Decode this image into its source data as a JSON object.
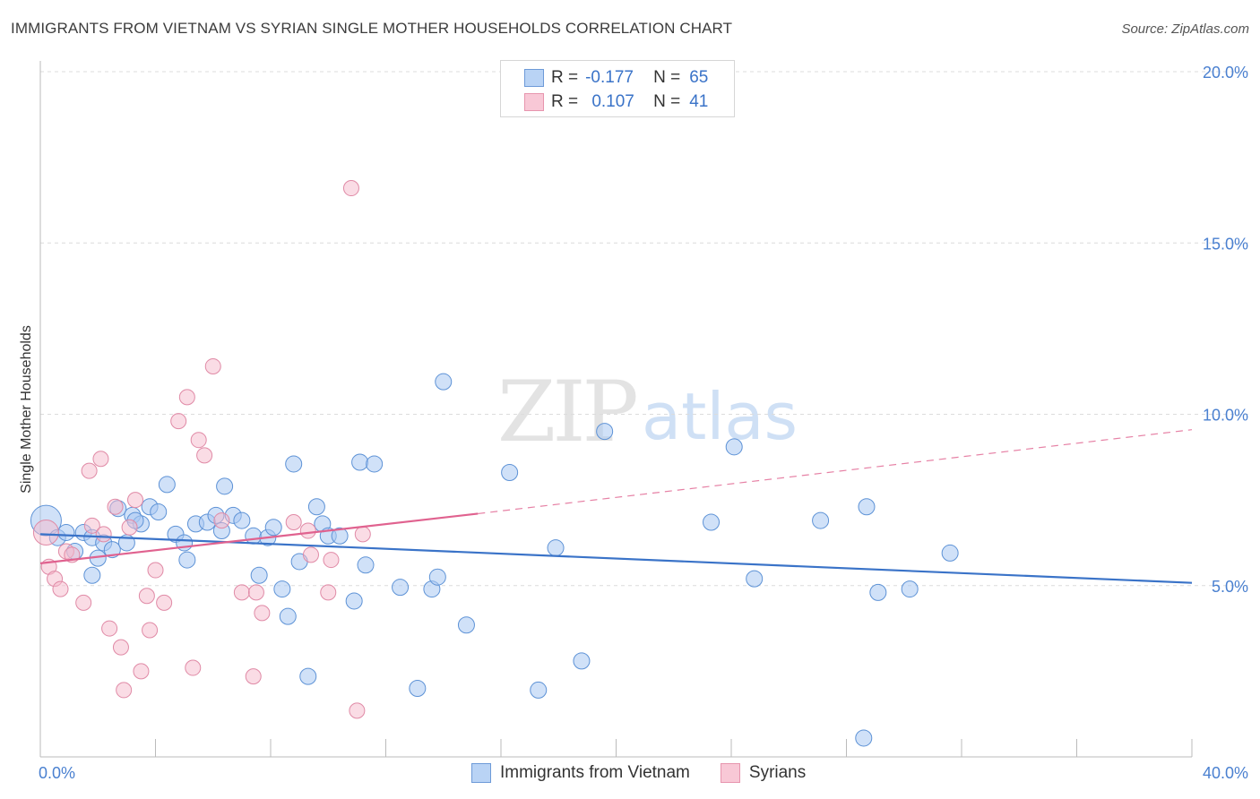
{
  "title": "IMMIGRANTS FROM VIETNAM VS SYRIAN SINGLE MOTHER HOUSEHOLDS CORRELATION CHART",
  "source": "Source: ZipAtlas.com",
  "watermark": {
    "zip": "ZIP",
    "atlas": "atlas"
  },
  "legend_top": [
    {
      "r_label": "R =",
      "r_value": "-0.177",
      "n_label": "N =",
      "n_value": "65"
    },
    {
      "r_label": "R =",
      "r_value": "0.107",
      "n_label": "N =",
      "n_value": "41"
    }
  ],
  "legend_bottom": [
    "Immigrants from Vietnam",
    "Syrians"
  ],
  "colors": {
    "vietnam_fill": "#a9c8f2",
    "vietnam_stroke": "#5d92d6",
    "vietnam_line": "#3a73c8",
    "syrian_fill": "#f6b9cb",
    "syrian_stroke": "#e08aa6",
    "syrian_line": "#e0628f",
    "tick_text": "#4a80d0",
    "grid": "#dcdcdc"
  },
  "chart_data": {
    "type": "scatter",
    "title": "IMMIGRANTS FROM VIETNAM VS SYRIAN SINGLE MOTHER HOUSEHOLDS CORRELATION CHART",
    "xlabel": "",
    "ylabel": "Single Mother Households",
    "xlim": [
      0,
      40
    ],
    "ylim": [
      0,
      20
    ],
    "x_tick_labels": [
      "0.0%",
      "40.0%"
    ],
    "y_ticks": [
      5,
      10,
      15,
      20
    ],
    "y_tick_labels": [
      "5.0%",
      "10.0%",
      "15.0%",
      "20.0%"
    ],
    "grid": true,
    "legend_position": "top-center",
    "series": [
      {
        "name": "Immigrants from Vietnam",
        "R": -0.177,
        "N": 65,
        "trend": {
          "x": [
            0,
            40
          ],
          "y": [
            6.5,
            5.08
          ]
        },
        "points": [
          [
            0.2,
            6.9
          ],
          [
            0.6,
            6.4
          ],
          [
            0.9,
            6.55
          ],
          [
            1.2,
            6.0
          ],
          [
            1.5,
            6.55
          ],
          [
            1.8,
            6.4
          ],
          [
            1.8,
            5.3
          ],
          [
            2.0,
            5.8
          ],
          [
            2.2,
            6.25
          ],
          [
            2.5,
            6.05
          ],
          [
            2.7,
            7.25
          ],
          [
            3.0,
            6.25
          ],
          [
            3.2,
            7.05
          ],
          [
            3.5,
            6.8
          ],
          [
            3.8,
            7.3
          ],
          [
            4.1,
            7.15
          ],
          [
            4.4,
            7.95
          ],
          [
            4.7,
            6.5
          ],
          [
            5.0,
            6.25
          ],
          [
            5.1,
            5.75
          ],
          [
            5.4,
            6.8
          ],
          [
            5.8,
            6.85
          ],
          [
            6.1,
            7.05
          ],
          [
            6.3,
            6.6
          ],
          [
            6.4,
            7.9
          ],
          [
            6.7,
            7.05
          ],
          [
            7.0,
            6.9
          ],
          [
            7.4,
            6.45
          ],
          [
            7.6,
            5.3
          ],
          [
            7.9,
            6.4
          ],
          [
            8.1,
            6.7
          ],
          [
            8.4,
            4.9
          ],
          [
            8.6,
            4.1
          ],
          [
            8.8,
            8.55
          ],
          [
            9.0,
            5.7
          ],
          [
            9.3,
            2.35
          ],
          [
            9.6,
            7.3
          ],
          [
            9.8,
            6.8
          ],
          [
            10.0,
            6.45
          ],
          [
            10.4,
            6.45
          ],
          [
            10.9,
            4.55
          ],
          [
            11.1,
            8.6
          ],
          [
            11.3,
            5.6
          ],
          [
            11.6,
            8.55
          ],
          [
            12.5,
            4.95
          ],
          [
            13.1,
            2.0
          ],
          [
            13.6,
            4.9
          ],
          [
            13.8,
            5.25
          ],
          [
            14.0,
            10.95
          ],
          [
            14.8,
            3.85
          ],
          [
            16.3,
            8.3
          ],
          [
            17.3,
            1.95
          ],
          [
            17.9,
            6.1
          ],
          [
            18.8,
            2.8
          ],
          [
            19.6,
            9.5
          ],
          [
            23.3,
            6.85
          ],
          [
            24.1,
            9.05
          ],
          [
            24.8,
            5.2
          ],
          [
            27.1,
            6.9
          ],
          [
            28.6,
            0.55
          ],
          [
            28.7,
            7.3
          ],
          [
            29.1,
            4.8
          ],
          [
            30.2,
            4.9
          ],
          [
            31.6,
            5.95
          ],
          [
            3.3,
            6.9
          ]
        ]
      },
      {
        "name": "Syrians",
        "R": 0.107,
        "N": 41,
        "trend": {
          "x": [
            0,
            15.2
          ],
          "y": [
            5.65,
            7.1
          ]
        },
        "trend_dashed": {
          "x": [
            15.2,
            40
          ],
          "y": [
            7.1,
            9.55
          ]
        },
        "points": [
          [
            0.2,
            6.55
          ],
          [
            0.3,
            5.55
          ],
          [
            0.5,
            5.2
          ],
          [
            0.7,
            4.9
          ],
          [
            0.9,
            6.0
          ],
          [
            1.1,
            5.9
          ],
          [
            1.5,
            4.5
          ],
          [
            1.7,
            8.35
          ],
          [
            1.8,
            6.75
          ],
          [
            2.1,
            8.7
          ],
          [
            2.2,
            6.5
          ],
          [
            2.4,
            3.75
          ],
          [
            2.6,
            7.3
          ],
          [
            2.8,
            3.2
          ],
          [
            2.9,
            1.95
          ],
          [
            3.1,
            6.7
          ],
          [
            3.3,
            7.5
          ],
          [
            3.5,
            2.5
          ],
          [
            3.7,
            4.7
          ],
          [
            3.8,
            3.7
          ],
          [
            4.0,
            5.45
          ],
          [
            4.3,
            4.5
          ],
          [
            4.8,
            9.8
          ],
          [
            5.1,
            10.5
          ],
          [
            5.3,
            2.6
          ],
          [
            5.5,
            9.25
          ],
          [
            5.7,
            8.8
          ],
          [
            6.0,
            11.4
          ],
          [
            6.3,
            6.9
          ],
          [
            7.0,
            4.8
          ],
          [
            7.4,
            2.35
          ],
          [
            7.5,
            4.8
          ],
          [
            7.7,
            4.2
          ],
          [
            8.8,
            6.85
          ],
          [
            9.3,
            6.6
          ],
          [
            9.4,
            5.9
          ],
          [
            10.0,
            4.8
          ],
          [
            10.1,
            5.75
          ],
          [
            10.8,
            16.6
          ],
          [
            11.0,
            1.35
          ],
          [
            11.2,
            6.5
          ]
        ]
      }
    ]
  }
}
